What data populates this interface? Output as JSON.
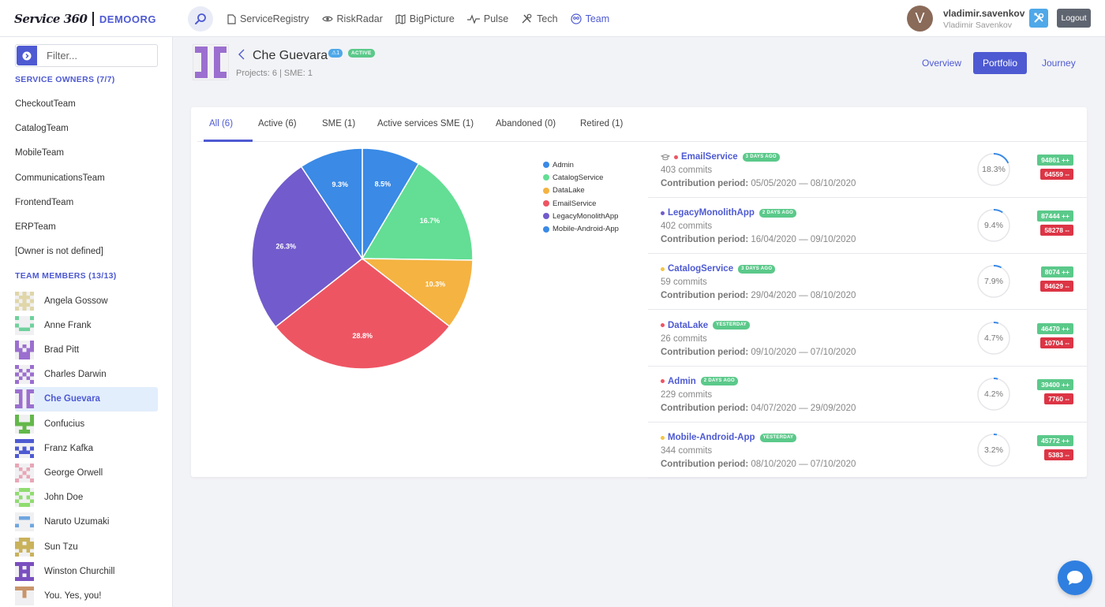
{
  "brand": {
    "logo": "Service 360",
    "org": "DEMOORG"
  },
  "nav": [
    {
      "label": "ServiceRegistry",
      "icon": "file-icon"
    },
    {
      "label": "RiskRadar",
      "icon": "eye-icon"
    },
    {
      "label": "BigPicture",
      "icon": "map-icon"
    },
    {
      "label": "Pulse",
      "icon": "pulse-icon"
    },
    {
      "label": "Tech",
      "icon": "tools-icon"
    },
    {
      "label": "Team",
      "icon": "team-icon",
      "active": true
    }
  ],
  "user": {
    "initial": "V",
    "login": "vladimir.savenkov",
    "name": "Vladimir Savenkov",
    "logout": "Logout"
  },
  "sidebar": {
    "filter_placeholder": "Filter...",
    "owners_title": "SERVICE OWNERS (7/7)",
    "teams": [
      "CheckoutTeam",
      "CatalogTeam",
      "MobileTeam",
      "CommunicationsTeam",
      "FrontendTeam",
      "ERPTeam",
      "[Owner is not defined]"
    ],
    "members_title": "TEAM MEMBERS (13/13)",
    "members": [
      "Angela Gossow",
      "Anne Frank",
      "Brad Pitt",
      "Charles Darwin",
      "Che Guevara",
      "Confucius",
      "Franz Kafka",
      "George Orwell",
      "John Doe",
      "Naruto Uzumaki",
      "Sun Tzu",
      "Winston Churchill",
      "You. Yes, you!"
    ],
    "selected": "Che Guevara"
  },
  "header": {
    "title": "Che Guevara",
    "count_badge": "⚠1",
    "status": "ACTIVE",
    "subtitle": "Projects: 6 | SME: 1",
    "views": [
      "Overview",
      "Portfolio",
      "Journey"
    ],
    "active_view": "Portfolio"
  },
  "tabs": [
    "All (6)",
    "Active (6)",
    "SME (1)",
    "Active services SME (1)",
    "Abandoned (0)",
    "Retired (1)"
  ],
  "chart_data": {
    "type": "pie",
    "slices": [
      {
        "label": "Admin",
        "value": 8.5,
        "text": "8.5%",
        "color": "#3a8ae6"
      },
      {
        "label": "CatalogService",
        "value": 16.7,
        "text": "16.7%",
        "color": "#63de94"
      },
      {
        "label": "DataLake",
        "value": 10.3,
        "text": "10.3%",
        "color": "#f5b342"
      },
      {
        "label": "EmailService",
        "value": 28.8,
        "text": "28.8%",
        "color": "#ee5563"
      },
      {
        "label": "LegacyMonolithApp",
        "value": 26.3,
        "text": "26.3%",
        "color": "#725bcc"
      },
      {
        "label": "Mobile-Android-App",
        "value": 9.3,
        "text": "9.3%",
        "color": "#3a8ae6"
      }
    ]
  },
  "projects": [
    {
      "name": "EmailService",
      "time": "3 DAYS AGO",
      "commits": "403 commits",
      "period_label": "Contribution period:",
      "period": "05/05/2020 — 08/10/2020",
      "pct": "18.3%",
      "pct_value": 18.3,
      "added": "94861 ++",
      "removed": "64559 --",
      "dot": "#ee5563",
      "sme": true
    },
    {
      "name": "LegacyMonolithApp",
      "time": "2 DAYS AGO",
      "commits": "402 commits",
      "period_label": "Contribution period:",
      "period": "16/04/2020 — 09/10/2020",
      "pct": "9.4%",
      "pct_value": 9.4,
      "added": "87444 ++",
      "removed": "58278 --",
      "dot": "#725bcc"
    },
    {
      "name": "CatalogService",
      "time": "3 DAYS AGO",
      "commits": "59 commits",
      "period_label": "Contribution period:",
      "period": "29/04/2020 — 08/10/2020",
      "pct": "7.9%",
      "pct_value": 7.9,
      "added": "8074 ++",
      "removed": "84629 --",
      "dot": "#f5c542"
    },
    {
      "name": "DataLake",
      "time": "YESTERDAY",
      "commits": "26 commits",
      "period_label": "Contribution period:",
      "period": "09/10/2020 — 07/10/2020",
      "pct": "4.7%",
      "pct_value": 4.7,
      "added": "46470 ++",
      "removed": "10704 --",
      "dot": "#ee5563"
    },
    {
      "name": "Admin",
      "time": "2 DAYS AGO",
      "commits": "229 commits",
      "period_label": "Contribution period:",
      "period": "04/07/2020 — 29/09/2020",
      "pct": "4.2%",
      "pct_value": 4.2,
      "added": "39400 ++",
      "removed": "7760 --",
      "dot": "#ee5563"
    },
    {
      "name": "Mobile-Android-App",
      "time": "YESTERDAY",
      "commits": "344 commits",
      "period_label": "Contribution period:",
      "period": "08/10/2020 — 07/10/2020",
      "pct": "3.2%",
      "pct_value": 3.2,
      "added": "45772 ++",
      "removed": "5383 --",
      "dot": "#f5c542"
    }
  ],
  "colors": {
    "accent": "#4e5ad2",
    "success": "#5bc98a",
    "danger": "#dc3545"
  }
}
